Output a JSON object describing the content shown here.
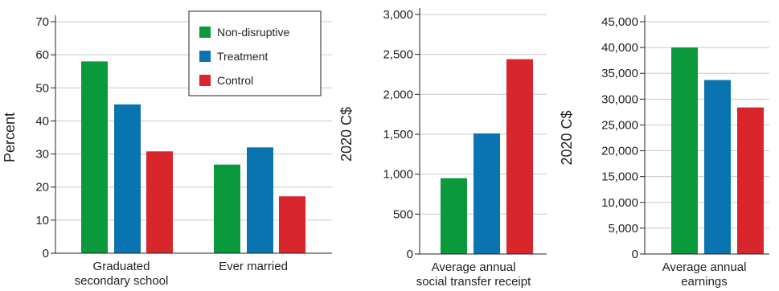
{
  "colors": {
    "Non-disruptive": "#0a9a3c",
    "Treatment": "#0a74b0",
    "Control": "#d9262c",
    "grid": "#c8c8c8",
    "axis": "#222222"
  },
  "legend": [
    "Non-disruptive",
    "Treatment",
    "Control"
  ],
  "chart_data": [
    {
      "type": "bar",
      "ylabel": "Percent",
      "ylim": [
        0,
        70
      ],
      "yticks": [
        0,
        10,
        20,
        30,
        40,
        50,
        60,
        70
      ],
      "ytick_labels": [
        "0",
        "10",
        "20",
        "30",
        "40",
        "50",
        "60",
        "70"
      ],
      "grid": true,
      "legend_position": "top-right",
      "categories": [
        {
          "lines": [
            "Graduated",
            "secondary school"
          ]
        },
        {
          "lines": [
            "Ever married"
          ]
        }
      ],
      "series": [
        {
          "name": "Non-disruptive",
          "values": [
            58,
            26.8
          ]
        },
        {
          "name": "Treatment",
          "values": [
            45,
            32
          ]
        },
        {
          "name": "Control",
          "values": [
            30.8,
            17.2
          ]
        }
      ]
    },
    {
      "type": "bar",
      "ylabel": "2020 C$",
      "ylim": [
        0,
        3000
      ],
      "yticks": [
        0,
        500,
        1000,
        1500,
        2000,
        2500,
        3000
      ],
      "ytick_labels": [
        "0",
        "500",
        "1,000",
        "1,500",
        "2,000",
        "2,500",
        "3,000"
      ],
      "grid": true,
      "categories": [
        {
          "lines": [
            "Average annual",
            "social transfer receipt"
          ]
        }
      ],
      "series": [
        {
          "name": "Non-disruptive",
          "values": [
            950
          ]
        },
        {
          "name": "Treatment",
          "values": [
            1510
          ]
        },
        {
          "name": "Control",
          "values": [
            2440
          ]
        }
      ]
    },
    {
      "type": "bar",
      "ylabel": "2020 C$",
      "ylim": [
        0,
        45000
      ],
      "yticks": [
        0,
        5000,
        10000,
        15000,
        20000,
        25000,
        30000,
        35000,
        40000,
        45000
      ],
      "ytick_labels": [
        "0",
        "5,000",
        "10,000",
        "15,000",
        "20,000",
        "25,000",
        "30,000",
        "35,000",
        "40,000",
        "45,000"
      ],
      "grid": true,
      "categories": [
        {
          "lines": [
            "Average annual",
            "earnings"
          ]
        }
      ],
      "series": [
        {
          "name": "Non-disruptive",
          "values": [
            40000
          ]
        },
        {
          "name": "Treatment",
          "values": [
            33700
          ]
        },
        {
          "name": "Control",
          "values": [
            28400
          ]
        }
      ]
    }
  ]
}
